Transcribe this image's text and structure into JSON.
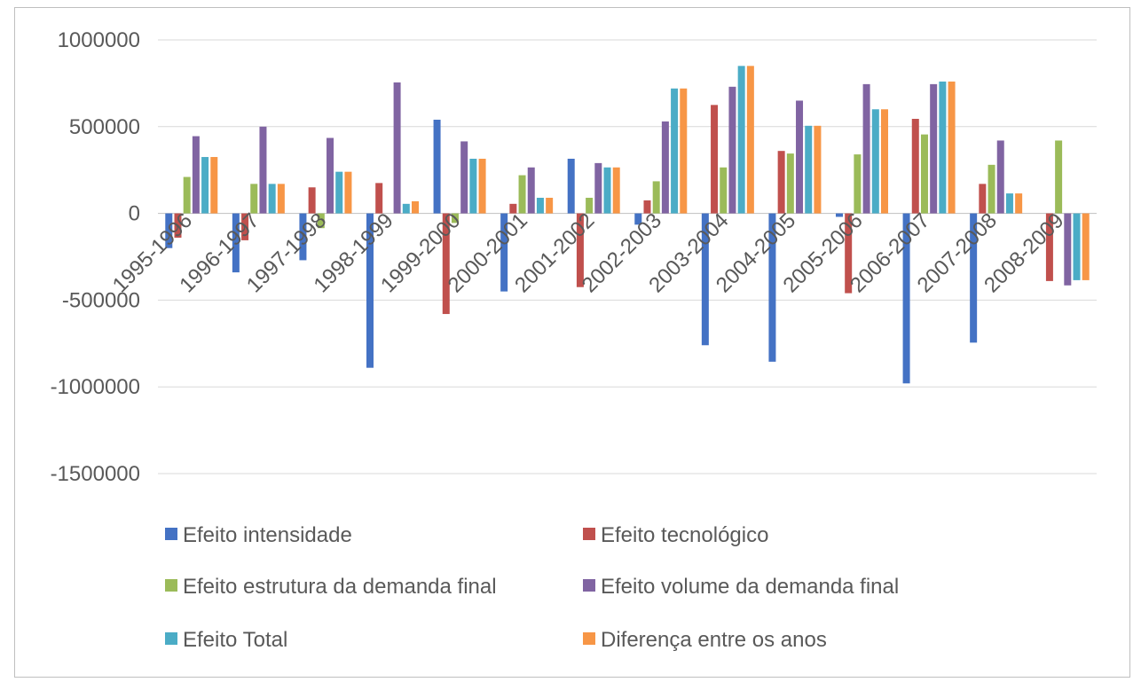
{
  "chart_data": {
    "type": "bar",
    "categories": [
      "1995-1996",
      "1996-1997",
      "1997-1998",
      "1998-1999",
      "1999-2000",
      "2000-2001",
      "2001-2002",
      "2002-2003",
      "2003-2004",
      "2004-2005",
      "2005-2006",
      "2006-2007",
      "2007-2008",
      "2008-2009"
    ],
    "series": [
      {
        "name": "Efeito intensidade",
        "color": "#4472c4",
        "values": [
          -200000,
          -340000,
          -270000,
          -890000,
          540000,
          -450000,
          315000,
          -65000,
          -760000,
          -855000,
          -20000,
          -980000,
          -745000,
          0
        ]
      },
      {
        "name": "Efeito tecnológico",
        "color": "#c0504d",
        "values": [
          -140000,
          -155000,
          150000,
          175000,
          -580000,
          55000,
          -425000,
          75000,
          625000,
          360000,
          -460000,
          545000,
          170000,
          -390000
        ]
      },
      {
        "name": "Efeito estrutura da demanda final",
        "color": "#9bbb59",
        "values": [
          210000,
          170000,
          -85000,
          0,
          -55000,
          220000,
          90000,
          185000,
          265000,
          345000,
          340000,
          455000,
          280000,
          420000
        ]
      },
      {
        "name": "Efeito volume da demanda final",
        "color": "#8064a2",
        "values": [
          445000,
          500000,
          435000,
          755000,
          415000,
          265000,
          290000,
          530000,
          730000,
          650000,
          745000,
          745000,
          420000,
          -415000
        ]
      },
      {
        "name": "Efeito Total",
        "color": "#4bacc6",
        "values": [
          325000,
          170000,
          240000,
          55000,
          315000,
          90000,
          265000,
          720000,
          850000,
          505000,
          600000,
          760000,
          115000,
          -385000
        ]
      },
      {
        "name": "Diferença entre os anos",
        "color": "#f79646",
        "values": [
          325000,
          170000,
          240000,
          70000,
          315000,
          90000,
          265000,
          720000,
          850000,
          505000,
          600000,
          760000,
          115000,
          -385000
        ]
      }
    ],
    "yticks": [
      "1000000",
      "500000",
      "0",
      "-500000",
      "-1000000",
      "-1500000"
    ],
    "ylim": [
      -1500000,
      1000000
    ],
    "grid": true,
    "legend_position": "bottom"
  }
}
